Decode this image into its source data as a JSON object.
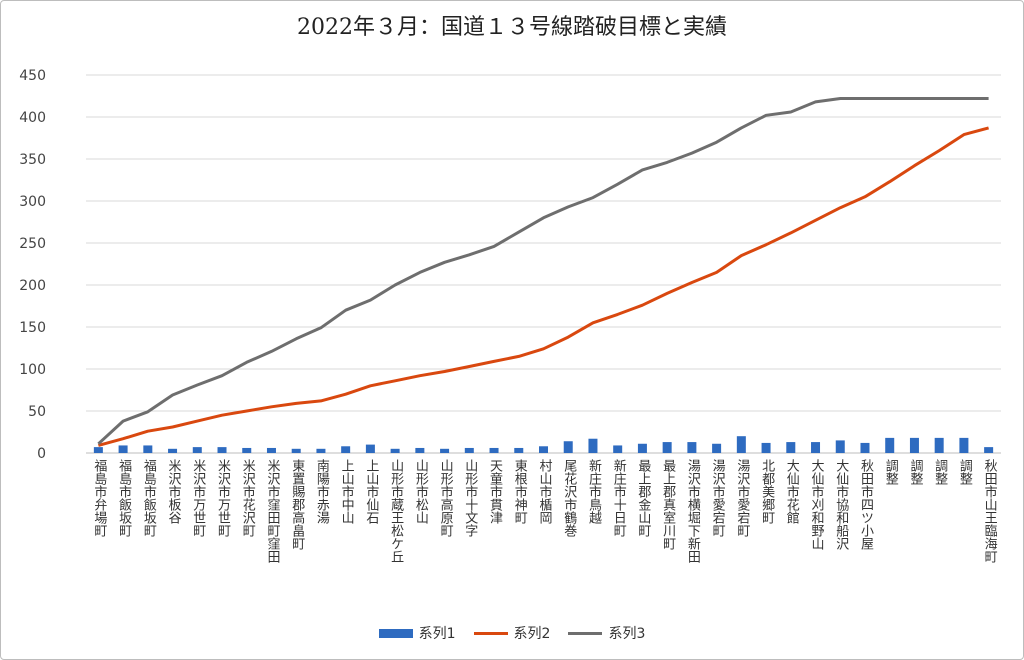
{
  "chart_data": {
    "type": "bar+line",
    "title": "2022年３月：国道１３号線踏破目標と実績",
    "xlabel": "",
    "ylabel": "",
    "ylim": [
      0,
      450
    ],
    "yticks": [
      0,
      50,
      100,
      150,
      200,
      250,
      300,
      350,
      400,
      450
    ],
    "grid": true,
    "legend_position": "bottom",
    "categories": [
      "福島市弁場町",
      "福島市飯坂町",
      "福島市飯坂町",
      "米沢市板谷",
      "米沢市万世町",
      "米沢市万世町",
      "米沢市花沢町",
      "米沢市窪田町窪田",
      "東置賜郡高畠町",
      "南陽市赤湯",
      "上山市中山",
      "上山市仙石",
      "山形市蔵王松ケ丘",
      "山形市松山",
      "山形市高原町",
      "山形市十文字",
      "天童市貫津",
      "東根市神町",
      "村山市楯岡",
      "尾花沢市鶴巻",
      "新庄市鳥越",
      "新庄市十日町",
      "最上郡金山町",
      "最上郡真室川町",
      "湯沢市横堀下新田",
      "湯沢市愛宕町",
      "湯沢市愛宕町",
      "北都美郷町",
      "大仙市花館",
      "大仙市刈和野山",
      "大仙市協和船沢",
      "秋田市四ツ小屋",
      "調整",
      "調整",
      "調整",
      "調整",
      "秋田市山王臨海町"
    ],
    "series": [
      {
        "name": "系列1",
        "type": "bar",
        "color": "#2e6bc0",
        "values": [
          7,
          9,
          9,
          5,
          7,
          7,
          6,
          6,
          5,
          5,
          8,
          10,
          5,
          6,
          5,
          6,
          6,
          6,
          8,
          14,
          17,
          9,
          11,
          13,
          13,
          11,
          20,
          12,
          13,
          13,
          15,
          12,
          18,
          18,
          18,
          18,
          7
        ]
      },
      {
        "name": "系列2",
        "type": "line",
        "color": "#d9480f",
        "values": [
          9,
          17,
          26,
          31,
          38,
          45,
          50,
          55,
          59,
          62,
          70,
          80,
          86,
          92,
          97,
          103,
          109,
          115,
          124,
          138,
          155,
          165,
          176,
          190,
          203,
          215,
          235,
          248,
          262,
          277,
          292,
          305,
          323,
          342,
          360,
          379,
          387
        ]
      },
      {
        "name": "系列3",
        "type": "line",
        "color": "#6e6e6e",
        "values": [
          11,
          38,
          49,
          69,
          81,
          92,
          108,
          121,
          136,
          149,
          170,
          182,
          200,
          215,
          227,
          236,
          246,
          263,
          280,
          293,
          304,
          320,
          337,
          346,
          357,
          370,
          387,
          402,
          406,
          418,
          422,
          422,
          422,
          422,
          422,
          422,
          422
        ]
      }
    ]
  }
}
